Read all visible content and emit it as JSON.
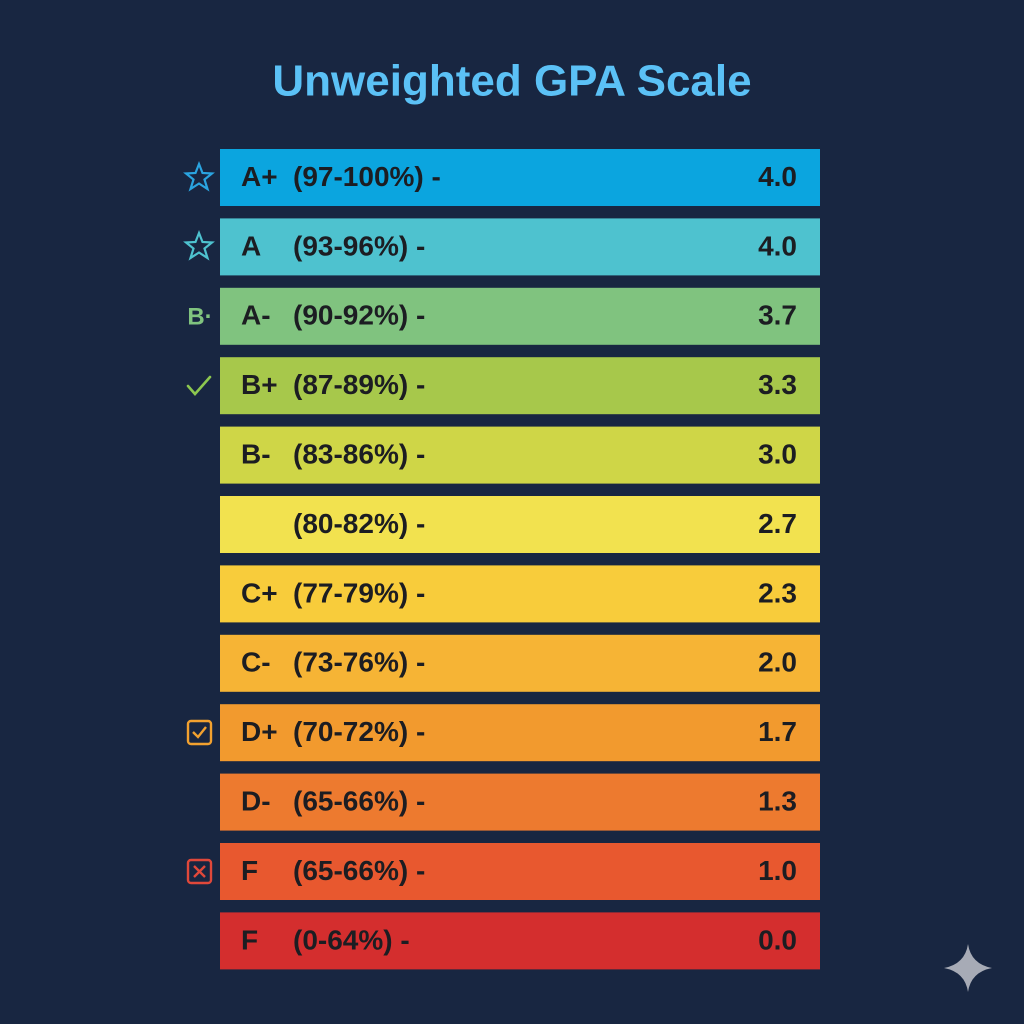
{
  "title": "Unweighted GPA Scale",
  "rows": [
    {
      "grade": "A+",
      "range": "(97-100%) -",
      "gpa": "4.0",
      "color": "#0ba5df"
    },
    {
      "grade": "A",
      "range": "(93-96%) -",
      "gpa": "4.0",
      "color": "#4ec2cf"
    },
    {
      "icon": "B·",
      "grade": "A-",
      "range": "(90-92%) -",
      "gpa": "3.7",
      "color": "#80c37f"
    },
    {
      "grade": "B+",
      "range": "(87-89%) -",
      "gpa": "3.3",
      "color": "#a7c84b"
    },
    {
      "grade": "B-",
      "range": "(83-86%) -",
      "gpa": "3.0",
      "color": "#cfd647"
    },
    {
      "range": "(80-82%) -",
      "gpa": "2.7",
      "color": "#f2e24f"
    },
    {
      "grade": "C+",
      "range": "(77-79%) -",
      "gpa": "2.3",
      "color": "#f8cc3b"
    },
    {
      "grade": "C-",
      "range": "(73-76%) -",
      "gpa": "2.0",
      "color": "#f6b435"
    },
    {
      "grade": "D+",
      "range": "(70-72%) -",
      "gpa": "1.7",
      "color": "#f29a2e"
    },
    {
      "grade": "D-",
      "range": "(65-66%) -",
      "gpa": "1.3",
      "color": "#ed7a2f"
    },
    {
      "grade": "F",
      "range": "(65-66%) -",
      "gpa": "1.0",
      "color": "#e8582f"
    },
    {
      "grade": "F",
      "range": "(0-64%) -",
      "gpa": "0.0",
      "color": "#d42e2e"
    }
  ]
}
